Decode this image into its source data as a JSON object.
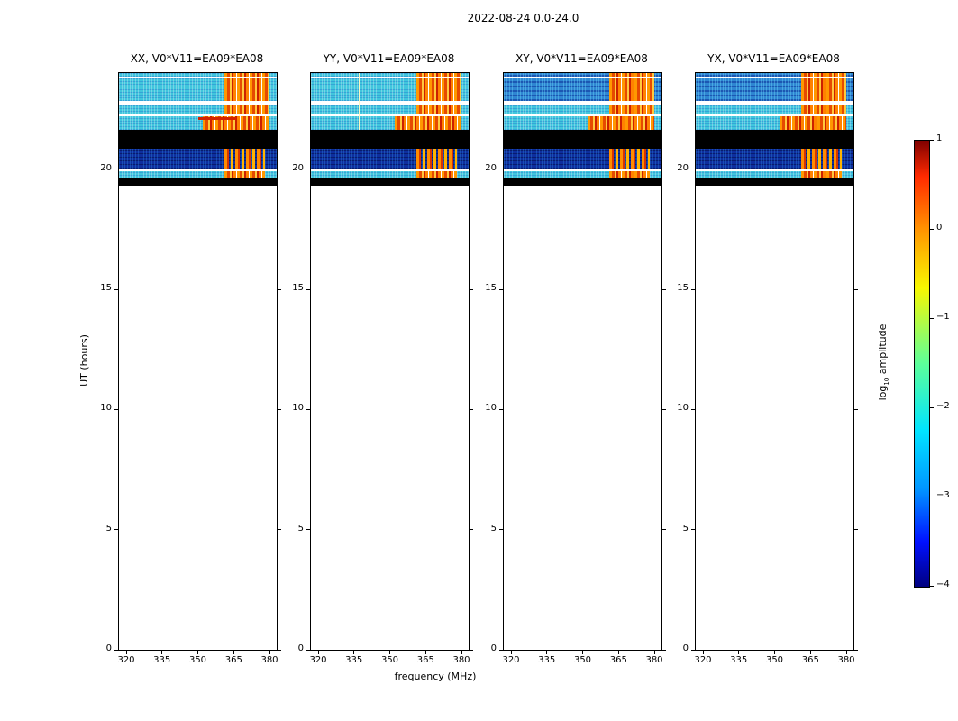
{
  "figure": {
    "title": "2022-08-24 0.0-24.0",
    "xlabel": "frequency (MHz)",
    "ylabel": "UT (hours)"
  },
  "panels": [
    {
      "title": "XX, V0*V11=EA09*EA08"
    },
    {
      "title": "YY, V0*V11=EA09*EA08"
    },
    {
      "title": "XY, V0*V11=EA09*EA08"
    },
    {
      "title": "YX, V0*V11=EA09*EA08"
    }
  ],
  "axes": {
    "xticks": [
      "320",
      "335",
      "350",
      "365",
      "380"
    ],
    "yticks": [
      "0",
      "5",
      "10",
      "15",
      "20"
    ]
  },
  "colorbar": {
    "label_parts": [
      "log",
      "10",
      " amplitude"
    ],
    "ticks": [
      "1",
      "0",
      "−1",
      "−2",
      "−3",
      "−4"
    ]
  },
  "chart_data": {
    "type": "heatmap",
    "title": "2022-08-24 0.0-24.0",
    "xlabel": "frequency (MHz)",
    "ylabel": "UT (hours)",
    "panels": [
      "XX, V0*V11=EA09*EA08",
      "YY, V0*V11=EA09*EA08",
      "XY, V0*V11=EA09*EA08",
      "YX, V0*V11=EA09*EA08"
    ],
    "x_range_mhz": [
      317,
      383
    ],
    "xticks": [
      320,
      335,
      350,
      365,
      380
    ],
    "y_range_hours": [
      0,
      24
    ],
    "yticks": [
      0,
      5,
      10,
      15,
      20
    ],
    "colorbar": {
      "label": "log10 amplitude",
      "min": -4,
      "max": 1,
      "ticks": [
        1,
        0,
        -1,
        -2,
        -3,
        -4
      ],
      "colormap": "jet"
    },
    "colormap_stops": [
      {
        "pos": 0.0,
        "color": "#7f0000"
      },
      {
        "pos": 0.08,
        "color": "#ff2a00"
      },
      {
        "pos": 0.2,
        "color": "#ff9400"
      },
      {
        "pos": 0.33,
        "color": "#f8f800"
      },
      {
        "pos": 0.5,
        "color": "#5cff9a"
      },
      {
        "pos": 0.65,
        "color": "#00e4ff"
      },
      {
        "pos": 0.78,
        "color": "#0096ff"
      },
      {
        "pos": 0.9,
        "color": "#0010ff"
      },
      {
        "pos": 1.0,
        "color": "#00007f"
      }
    ],
    "observed_ut_range": [
      19.3,
      24.0
    ],
    "description": "Dynamic spectra of baseline EA09*EA08 for four polarisation products. Data present only between UT 19.3 and 24.0; the rest of each panel is blank white. Broadband cyan emission (log10 amplitude ~ -2) with strong orange/red RFI between ~361-380 MHz, black flagged time ranges, and a faint dark-blue low-amplitude block around UT 20-21.",
    "render_colors": {
      "copol_base": "#41c6dd",
      "crosspol_base": "#2f86d2",
      "low_amplitude": "#0e2f9e",
      "flagged": "#000000",
      "blank": "#ffffff",
      "rfi_stripes": [
        "#ff9800",
        "#e64a00",
        "#ffc83c",
        "#cc2000",
        "#ff8200"
      ]
    },
    "bands": [
      {
        "ut": [
          24.0,
          23.87
        ],
        "kind": "data",
        "hot": [
          361,
          380
        ],
        "cross_dim": true
      },
      {
        "ut": [
          23.87,
          23.8
        ],
        "kind": "gap"
      },
      {
        "ut": [
          23.8,
          22.83
        ],
        "kind": "data",
        "hot": [
          361,
          380
        ],
        "cross_dim": true
      },
      {
        "ut": [
          22.83,
          22.7
        ],
        "kind": "gap"
      },
      {
        "ut": [
          22.7,
          22.26
        ],
        "kind": "data",
        "hot": [
          361,
          380
        ]
      },
      {
        "ut": [
          22.26,
          22.19
        ],
        "kind": "gap"
      },
      {
        "ut": [
          22.19,
          21.64
        ],
        "kind": "data",
        "hot": [
          352,
          380
        ]
      },
      {
        "ut": [
          21.64,
          20.84
        ],
        "kind": "flagged"
      },
      {
        "ut": [
          20.84,
          20.03
        ],
        "kind": "data",
        "dark": true,
        "hot": [
          361,
          378
        ]
      },
      {
        "ut": [
          20.03,
          19.93
        ],
        "kind": "gap"
      },
      {
        "ut": [
          19.93,
          19.63
        ],
        "kind": "data",
        "hot": [
          361,
          378
        ]
      },
      {
        "ut": [
          19.63,
          19.33
        ],
        "kind": "flagged"
      }
    ],
    "artifacts": [
      {
        "type": "hline_streak",
        "panel": 0,
        "ut": 22.17,
        "freq": [
          350,
          366
        ],
        "color": "#d42400"
      },
      {
        "type": "vline",
        "panel": 1,
        "freq": 337,
        "ut": [
          21.64,
          24.0
        ],
        "color": "#fdf6c0"
      }
    ]
  }
}
